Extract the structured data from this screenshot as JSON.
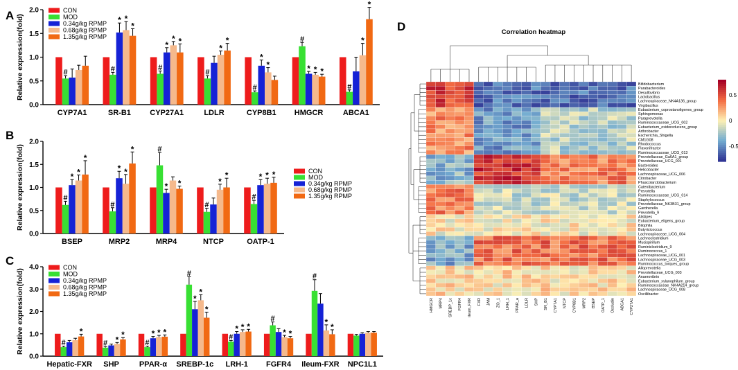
{
  "panel_letters": [
    "A",
    "B",
    "C",
    "D"
  ],
  "series_names": [
    "CON",
    "MOD",
    "0.34g/kg RPMP",
    "0.68g/kg RPMP",
    "1.35g/kg RPMP"
  ],
  "series_colors": [
    "#ee1c1c",
    "#38e033",
    "#1522d6",
    "#f5b98c",
    "#f16913"
  ],
  "chart_data": [
    {
      "type": "bar",
      "panel": "A",
      "ylabel": "Relative expression(fold)",
      "ylim": [
        0,
        2.0
      ],
      "yticks": [
        "0.0",
        "0.5",
        "1.0",
        "1.5",
        "2.0"
      ],
      "categories": [
        "CYP7A1",
        "SR-B1",
        "CYP27A1",
        "LDLR",
        "CYP8B1",
        "HMGCR",
        "ABCA1"
      ],
      "legend_position": "top-left",
      "series": [
        {
          "name": "CON",
          "values": [
            1,
            1,
            1,
            1,
            1,
            1,
            1
          ],
          "errors": [
            0,
            0,
            0,
            0,
            0,
            0,
            0
          ],
          "sig": [
            "",
            "",
            "",
            "",
            "",
            "",
            ""
          ]
        },
        {
          "name": "MOD",
          "values": [
            0.55,
            0.63,
            0.65,
            0.55,
            0.26,
            1.23,
            0.27
          ],
          "errors": [
            0.06,
            0.05,
            0.06,
            0.06,
            0.03,
            0.08,
            0.04
          ],
          "sig": [
            "#",
            "#",
            "#",
            "#",
            "#",
            "#",
            "#"
          ]
        },
        {
          "name": "0.34g/kg RPMP",
          "values": [
            0.57,
            1.52,
            1.1,
            0.88,
            0.82,
            0.65,
            0.7
          ],
          "errors": [
            0.18,
            0.2,
            0.1,
            0.14,
            0.12,
            0.05,
            0.3
          ],
          "sig": [
            "",
            "*",
            "*",
            "",
            "*",
            "*",
            ""
          ]
        },
        {
          "name": "0.68g/kg RPMP",
          "values": [
            0.73,
            1.57,
            1.25,
            1.05,
            0.68,
            0.63,
            1.04
          ],
          "errors": [
            0.1,
            0.18,
            0.08,
            0.08,
            0.1,
            0.05,
            0.25
          ],
          "sig": [
            "",
            "*",
            "*",
            "*",
            "*",
            "*",
            "*"
          ]
        },
        {
          "name": "1.35g/kg RPMP",
          "values": [
            0.82,
            1.45,
            1.1,
            1.14,
            0.52,
            0.59,
            1.8
          ],
          "errors": [
            0.2,
            0.15,
            0.18,
            0.15,
            0.08,
            0.05,
            0.25
          ],
          "sig": [
            "",
            "*",
            "*",
            "*",
            "",
            "*",
            "*"
          ]
        }
      ]
    },
    {
      "type": "bar",
      "panel": "B",
      "ylabel": "Relative expression(fold)",
      "ylim": [
        0,
        2.0
      ],
      "yticks": [
        "0.0",
        "0.5",
        "1.0",
        "1.5",
        "2.0"
      ],
      "categories": [
        "BSEP",
        "MRP2",
        "MRP4",
        "NTCP",
        "OATP-1"
      ],
      "legend_position": "right",
      "series": [
        {
          "name": "CON",
          "values": [
            1,
            1,
            1,
            1,
            1
          ],
          "errors": [
            0,
            0,
            0,
            0,
            0
          ],
          "sig": [
            "",
            "",
            "",
            "",
            ""
          ]
        },
        {
          "name": "MOD",
          "values": [
            0.62,
            0.48,
            1.48,
            0.47,
            0.64
          ],
          "errors": [
            0.08,
            0.08,
            0.28,
            0.08,
            0.08
          ],
          "sig": [
            "#",
            "#",
            "#",
            "#",
            "#"
          ]
        },
        {
          "name": "0.34g/kg RPMP",
          "values": [
            1.05,
            1.2,
            0.88,
            0.63,
            1.05
          ],
          "errors": [
            0.12,
            0.15,
            0.08,
            0.14,
            0.12
          ],
          "sig": [
            "*",
            "*",
            "*",
            "",
            "*"
          ]
        },
        {
          "name": "0.68g/kg RPMP",
          "values": [
            1.15,
            1.08,
            1.15,
            0.95,
            1.08
          ],
          "errors": [
            0.12,
            0.2,
            0.08,
            0.12,
            0.12
          ],
          "sig": [
            "*",
            "*",
            "",
            "*",
            "*"
          ]
        },
        {
          "name": "1.35g/kg RPMP",
          "values": [
            1.28,
            1.52,
            0.97,
            1.0,
            1.1
          ],
          "errors": [
            0.3,
            0.25,
            0.06,
            0.2,
            0.12
          ],
          "sig": [
            "*",
            "*",
            "*",
            "*",
            "*"
          ]
        }
      ]
    },
    {
      "type": "bar",
      "panel": "C",
      "ylabel": "Relative expression(fold)",
      "ylim": [
        0,
        4.0
      ],
      "yticks": [
        "0.0",
        "1.0",
        "2.0",
        "3.0",
        "4.0"
      ],
      "categories": [
        "Hepatic-FXR",
        "SHP",
        "PPAR-α",
        "SREBP-1c",
        "LRH-1",
        "FGFR4",
        "Ileum-FXR",
        "NPC1L1"
      ],
      "legend_position": "top-left",
      "series": [
        {
          "name": "CON",
          "values": [
            1,
            1,
            1,
            1,
            1,
            1,
            1,
            1
          ],
          "errors": [
            0,
            0,
            0,
            0,
            0,
            0,
            0,
            0
          ],
          "sig": [
            "",
            "",
            "",
            "",
            "",
            "",
            "",
            ""
          ]
        },
        {
          "name": "MOD",
          "values": [
            0.4,
            0.38,
            0.4,
            3.2,
            0.65,
            1.38,
            2.92,
            0.92
          ],
          "errors": [
            0.05,
            0.05,
            0.05,
            0.35,
            0.05,
            0.15,
            0.5,
            0.05
          ],
          "sig": [
            "#",
            "#",
            "#",
            "#",
            "#",
            "#",
            "#",
            ""
          ]
        },
        {
          "name": "0.34g/kg RPMP",
          "values": [
            0.62,
            0.48,
            0.8,
            2.1,
            1.0,
            1.08,
            2.35,
            1.0
          ],
          "errors": [
            0.08,
            0.06,
            0.08,
            0.35,
            0.1,
            0.15,
            0.45,
            0.05
          ],
          "sig": [
            "",
            "",
            "*",
            "*",
            "*",
            "",
            "",
            ""
          ]
        },
        {
          "name": "0.68g/kg RPMP",
          "values": [
            0.72,
            0.55,
            0.85,
            2.5,
            1.08,
            0.85,
            1.15,
            1.05
          ],
          "errors": [
            0.08,
            0.06,
            0.08,
            0.25,
            0.1,
            0.08,
            0.25,
            0.05
          ],
          "sig": [
            "",
            "*",
            "*",
            "*",
            "*",
            "*",
            "*",
            ""
          ]
        },
        {
          "name": "1.35g/kg RPMP",
          "values": [
            0.88,
            0.75,
            0.87,
            1.72,
            1.1,
            0.8,
            0.98,
            1.05
          ],
          "errors": [
            0.1,
            0.08,
            0.08,
            0.25,
            0.1,
            0.08,
            0.2,
            0.05
          ],
          "sig": [
            "*",
            "*",
            "*",
            "*",
            "*",
            "*",
            "*",
            ""
          ]
        }
      ]
    },
    {
      "type": "heatmap",
      "panel": "D",
      "title": "Correlation heatmap",
      "colorbar_ticks": [
        "0.5",
        "0",
        "-0.5"
      ],
      "colorbar_range": [
        -0.8,
        0.8
      ],
      "columns": [
        "HMGCR",
        "MRP4",
        "SREBP_1c",
        "FGFR4",
        "ileum_FXR",
        "FXR",
        "JAM",
        "ZO_1",
        "LRH_1",
        "PPAR_a",
        "LDLR",
        "SHP",
        "SR_B1",
        "CYP7A1",
        "NTCP",
        "CYP8B1",
        "MRP2",
        "BSEP",
        "OATP_1",
        "Occludin",
        "ABCA1",
        "CYP27A1"
      ],
      "rows": [
        "Bifidobacterium",
        "Parabacteroides",
        "Desulfovibrio",
        "Lactobacillus",
        "Lachnospiraceae_NK4A136_group",
        "Virgibacillus",
        "Eubacterium_coprostanoligenes_group",
        "Sphingomonas",
        "Paraprevotella",
        "Ruminococcaceae_UCG_002",
        "Eubacterium_oxidoreducens_group",
        "Arthrobacter",
        "Escherichia_Shigella",
        "CM1G08",
        "Rhodococcus",
        "Flavonifractor",
        "Ruminococcaceae_UCG_013",
        "Prevotellaceae_Ga6A1_group",
        "Prevotellaceae_UCG_001",
        "Bacteroides",
        "Helicobacter",
        "Lachnospiraceae_UCG_006",
        "Citrobacter",
        "Phascolarctobacterium",
        "Catenibacterium",
        "Prevotella",
        "Ruminococcaceae_UCG_014",
        "Staphylococcus",
        "Prevotellaceae_NK3B31_group",
        "Gardnerella",
        "Prevotella_9",
        "Alistipes",
        "Eubacterium_eligens_group",
        "Bilophila",
        "Butyricicoccus",
        "Lachnospiraceae_UCG_004",
        "Lachnoclostridium",
        "Mucispirillum",
        "Ruminiclostridium_9",
        "Ruminococcus_1",
        "Lachnospiraceae_UCG_001",
        "Lachnospiraceae_UCG_003",
        "Ruminococcus_torques_group",
        "Alloprevotella",
        "Prevotellaceae_UCG_003",
        "Anaerovibrio",
        "Eubacterium_xylanophilum_group",
        "Ruminococcaceae_NK4A214_group",
        "Lachnospiraceae_UCG_008",
        "Oscillibacter"
      ],
      "blocks": [
        {
          "r": [
            0,
            5
          ],
          "c": [
            5,
            21
          ],
          "v": -0.6
        },
        {
          "r": [
            0,
            5
          ],
          "c": [
            0,
            4
          ],
          "v": 0.55
        },
        {
          "r": [
            6,
            16
          ],
          "c": [
            0,
            4
          ],
          "v": 0.3
        },
        {
          "r": [
            6,
            16
          ],
          "c": [
            5,
            11
          ],
          "v": -0.45
        },
        {
          "r": [
            6,
            16
          ],
          "c": [
            12,
            21
          ],
          "v": -0.2
        },
        {
          "r": [
            17,
            23
          ],
          "c": [
            0,
            4
          ],
          "v": -0.35
        },
        {
          "r": [
            17,
            23
          ],
          "c": [
            5,
            11
          ],
          "v": 0.6
        },
        {
          "r": [
            17,
            23
          ],
          "c": [
            12,
            21
          ],
          "v": 0.35
        },
        {
          "r": [
            24,
            30
          ],
          "c": [
            0,
            4
          ],
          "v": 0.35
        },
        {
          "r": [
            24,
            30
          ],
          "c": [
            5,
            21
          ],
          "v": -0.15
        },
        {
          "r": [
            31,
            35
          ],
          "c": [
            0,
            21
          ],
          "v": 0.0
        },
        {
          "r": [
            36,
            42
          ],
          "c": [
            0,
            4
          ],
          "v": -0.4
        },
        {
          "r": [
            36,
            42
          ],
          "c": [
            5,
            21
          ],
          "v": 0.4
        },
        {
          "r": [
            43,
            49
          ],
          "c": [
            0,
            21
          ],
          "v": 0.05
        }
      ]
    }
  ]
}
